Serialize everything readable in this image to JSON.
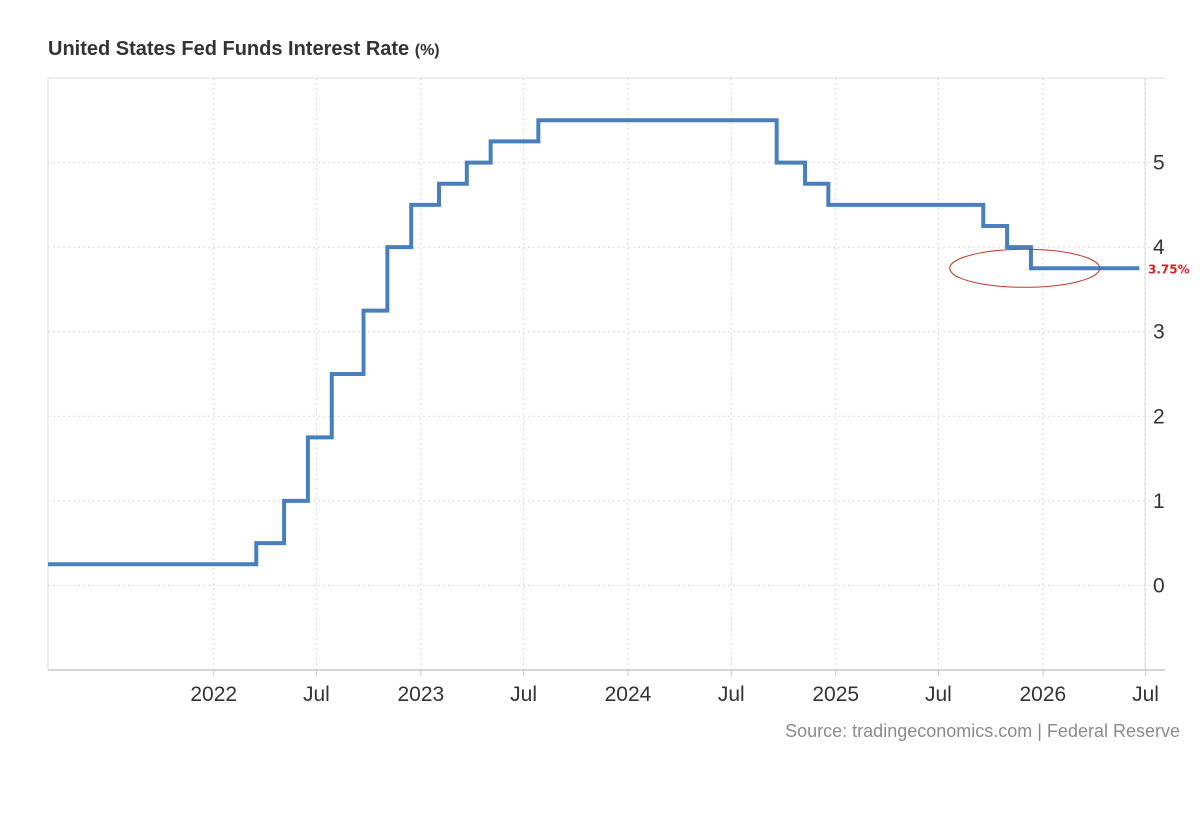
{
  "title": {
    "text": "United States Fed Funds Interest Rate",
    "unit": "(%)"
  },
  "source": "Source: tradingeconomics.com | Federal Reserve",
  "chart_data": {
    "type": "line",
    "line_style": "step",
    "color": "#4a7fbd",
    "annotation_color": "#e01e1e",
    "grid": true,
    "y_axis_side": "right",
    "xlim": [
      "2021-03-15",
      "2026-06-30"
    ],
    "ylim": [
      -1,
      6
    ],
    "yticks": [
      0,
      1,
      2,
      3,
      4,
      5
    ],
    "xticks": [
      {
        "date": "2022-01-01",
        "label": "2022"
      },
      {
        "date": "2022-07-01",
        "label": "Jul"
      },
      {
        "date": "2023-01-01",
        "label": "2023"
      },
      {
        "date": "2023-07-01",
        "label": "Jul"
      },
      {
        "date": "2024-01-01",
        "label": "2024"
      },
      {
        "date": "2024-07-01",
        "label": "Jul"
      },
      {
        "date": "2025-01-01",
        "label": "2025"
      },
      {
        "date": "2025-07-01",
        "label": "Jul"
      },
      {
        "date": "2026-01-01",
        "label": "2026"
      },
      {
        "date": "2026-07-01",
        "label": "Jul"
      }
    ],
    "series": [
      {
        "points": [
          {
            "x": "2021-03-15",
            "y": 0.25
          },
          {
            "x": "2022-03-17",
            "y": 0.5
          },
          {
            "x": "2022-05-05",
            "y": 1.0
          },
          {
            "x": "2022-06-16",
            "y": 1.75
          },
          {
            "x": "2022-07-28",
            "y": 2.5
          },
          {
            "x": "2022-09-22",
            "y": 3.25
          },
          {
            "x": "2022-11-03",
            "y": 4.0
          },
          {
            "x": "2022-12-15",
            "y": 4.5
          },
          {
            "x": "2023-02-02",
            "y": 4.75
          },
          {
            "x": "2023-03-23",
            "y": 5.0
          },
          {
            "x": "2023-05-04",
            "y": 5.25
          },
          {
            "x": "2023-07-27",
            "y": 5.5
          },
          {
            "x": "2024-09-19",
            "y": 5.0
          },
          {
            "x": "2024-11-08",
            "y": 4.75
          },
          {
            "x": "2024-12-19",
            "y": 4.5
          },
          {
            "x": "2025-09-18",
            "y": 4.25
          },
          {
            "x": "2025-10-30",
            "y": 4.0
          },
          {
            "x": "2025-12-11",
            "y": 3.75
          },
          {
            "x": "2026-06-20",
            "y": 3.75
          }
        ]
      }
    ],
    "annotation": {
      "label": "3.75%",
      "value": 3.75
    }
  }
}
